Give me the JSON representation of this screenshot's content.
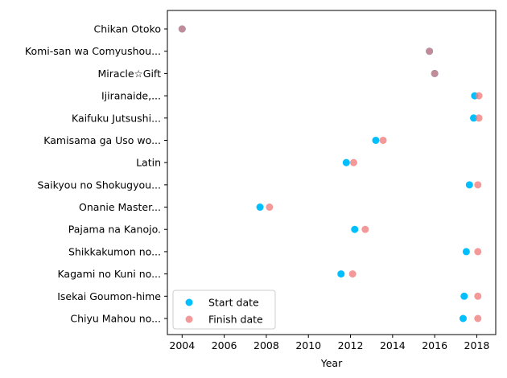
{
  "chart_data": {
    "type": "scatter",
    "title": "",
    "xlabel": "Year",
    "ylabel": "",
    "xlim": [
      2003.3,
      2018.9
    ],
    "xticks": [
      2004,
      2006,
      2008,
      2010,
      2012,
      2014,
      2016,
      2018
    ],
    "grid": false,
    "legend_placement": "lower-left",
    "categories": [
      "Chikan Otoko",
      "Komi-san wa Comyushou...",
      "Miracle☆Gift",
      "Ijiranaide,...",
      "Kaifuku Jutsushi...",
      "Kamisama ga Uso wo...",
      "Latin",
      "Saikyou no Shokugyou...",
      "Onanie Master...",
      "Pajama na Kanojo.",
      "Shikkakumon no...",
      "Kagami no Kuni no...",
      "Isekai Goumon-hime",
      "Chiyu Mahou no..."
    ],
    "series": [
      {
        "name": "Start date",
        "color": "#00bfff",
        "values": [
          2004.0,
          2015.75,
          2016.0,
          2017.9,
          2017.85,
          2013.2,
          2011.8,
          2017.65,
          2007.7,
          2012.2,
          2017.5,
          2011.55,
          2017.4,
          2017.35
        ]
      },
      {
        "name": "Finish date",
        "color": "#f08080",
        "values": [
          2004.0,
          2015.75,
          2016.0,
          2018.1,
          2018.1,
          2013.55,
          2012.15,
          2018.05,
          2008.15,
          2012.7,
          2018.05,
          2012.1,
          2018.05,
          2018.05
        ]
      }
    ]
  }
}
